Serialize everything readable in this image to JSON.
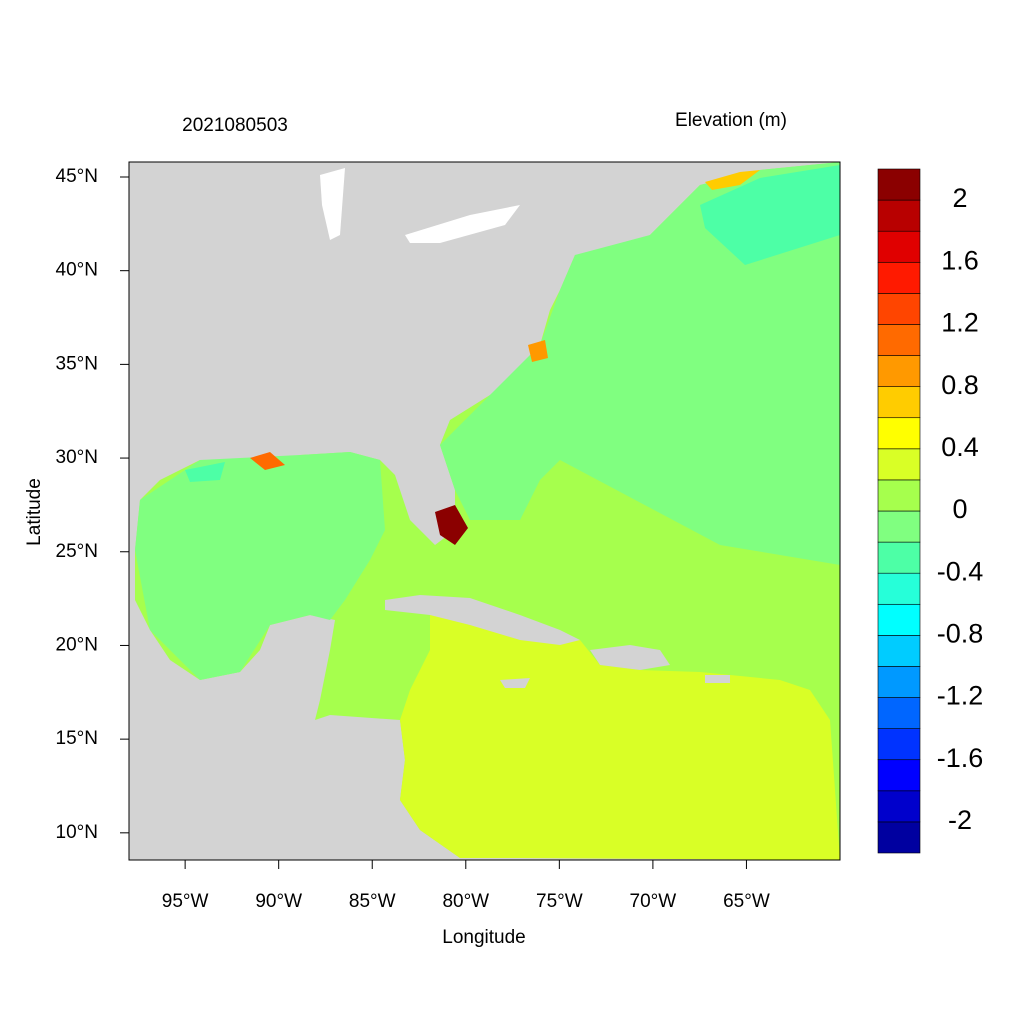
{
  "title_left": "2021080503",
  "title_right": "Elevation (m)",
  "x_label": "Longitude",
  "y_label": "Latitude",
  "xlim": [
    -98,
    -60
  ],
  "ylim": [
    8.55,
    45.8
  ],
  "xticks": [
    {
      "value": -95,
      "label": "95°W"
    },
    {
      "value": -90,
      "label": "90°W"
    },
    {
      "value": -85,
      "label": "85°W"
    },
    {
      "value": -80,
      "label": "80°W"
    },
    {
      "value": -75,
      "label": "75°W"
    },
    {
      "value": -70,
      "label": "70°W"
    },
    {
      "value": -65,
      "label": "65°W"
    }
  ],
  "yticks": [
    {
      "value": 10,
      "label": "10°N"
    },
    {
      "value": 15,
      "label": "15°N"
    },
    {
      "value": 20,
      "label": "20°N"
    },
    {
      "value": 25,
      "label": "25°N"
    },
    {
      "value": 30,
      "label": "30°N"
    },
    {
      "value": 35,
      "label": "35°N"
    },
    {
      "value": 40,
      "label": "40°N"
    },
    {
      "value": 45,
      "label": "45°N"
    }
  ],
  "colorbar": {
    "lim": [
      -2.2,
      2.2
    ],
    "colors": [
      "#0000a0",
      "#0000cc",
      "#0000ff",
      "#0033ff",
      "#0066ff",
      "#0099ff",
      "#00ccff",
      "#00ffff",
      "#26ffd9",
      "#4dffa6",
      "#80ff80",
      "#a6ff4d",
      "#d9ff26",
      "#ffff00",
      "#ffcc00",
      "#ff9900",
      "#ff6a00",
      "#ff4500",
      "#ff1a00",
      "#e00000",
      "#b80000",
      "#8b0000"
    ],
    "ticks": [
      -2,
      -1.6,
      -1.2,
      -0.8,
      -0.4,
      0,
      0.4,
      0.8,
      1.2,
      1.6,
      2
    ]
  }
}
